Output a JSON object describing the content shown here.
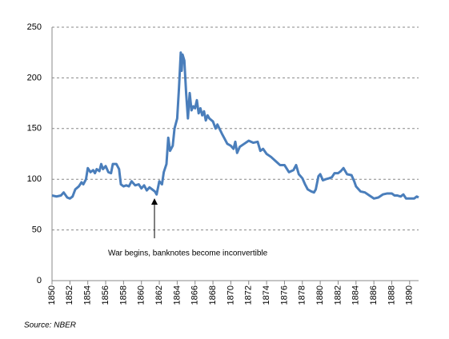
{
  "chart_data": {
    "type": "line",
    "annotation": "War begins, banknotes become inconvertible",
    "source": "Source: NBER",
    "xlim": [
      1850,
      1891
    ],
    "xticks": [
      1850,
      1852,
      1854,
      1856,
      1858,
      1860,
      1862,
      1864,
      1866,
      1868,
      1870,
      1872,
      1874,
      1876,
      1878,
      1880,
      1882,
      1884,
      1886,
      1888,
      1890
    ],
    "ylim": [
      0,
      250
    ],
    "yticks": [
      0,
      50,
      100,
      150,
      200,
      250
    ],
    "grid": true,
    "series": [
      {
        "color": "#4a7ebb",
        "x": [
          1850,
          1850.5,
          1851,
          1851.3,
          1851.7,
          1852,
          1852.3,
          1852.6,
          1853,
          1853.3,
          1853.5,
          1853.8,
          1854,
          1854.3,
          1854.6,
          1854.8,
          1855,
          1855.3,
          1855.5,
          1855.7,
          1856,
          1856.3,
          1856.6,
          1856.8,
          1857.2,
          1857.5,
          1857.7,
          1858,
          1858.3,
          1858.6,
          1858.9,
          1859.3,
          1859.7,
          1860,
          1860.3,
          1860.6,
          1860.9,
          1861.2,
          1861.5,
          1861.7,
          1862,
          1862.3,
          1862.5,
          1862.8,
          1863,
          1863.2,
          1863.5,
          1863.7,
          1864,
          1864.2,
          1864.4,
          1864.5,
          1864.6,
          1864.8,
          1865,
          1865.2,
          1865.4,
          1865.6,
          1865.8,
          1866,
          1866.2,
          1866.4,
          1866.6,
          1866.8,
          1867,
          1867.2,
          1867.4,
          1867.6,
          1868,
          1868.3,
          1868.5,
          1869,
          1869.3,
          1869.6,
          1870,
          1870.3,
          1870.5,
          1870.7,
          1871,
          1871.5,
          1872,
          1872.5,
          1873,
          1873.3,
          1873.6,
          1874,
          1874.5,
          1875,
          1875.5,
          1876,
          1876.5,
          1877,
          1877.3,
          1877.6,
          1878,
          1878.3,
          1878.6,
          1879,
          1879.3,
          1879.5,
          1879.8,
          1880,
          1880.3,
          1880.6,
          1881,
          1881.3,
          1881.6,
          1882,
          1882.3,
          1882.6,
          1883,
          1883.5,
          1883.8,
          1884,
          1884.5,
          1885,
          1885.5,
          1886,
          1886.5,
          1887,
          1887.5,
          1888,
          1888.3,
          1888.6,
          1889,
          1889.3,
          1889.6,
          1890,
          1890.5,
          1890.8,
          1891
        ],
        "values": [
          84,
          83,
          84,
          87,
          82,
          81,
          83,
          90,
          93,
          97,
          95,
          100,
          111,
          107,
          109,
          106,
          110,
          108,
          115,
          110,
          113,
          107,
          106,
          115,
          115,
          110,
          95,
          93,
          94,
          93,
          98,
          94,
          95,
          91,
          94,
          89,
          92,
          90,
          88,
          85,
          98,
          95,
          107,
          115,
          141,
          128,
          133,
          150,
          160,
          190,
          225,
          207,
          223,
          217,
          185,
          160,
          185,
          168,
          172,
          170,
          178,
          165,
          170,
          163,
          167,
          158,
          163,
          160,
          157,
          150,
          154,
          145,
          140,
          135,
          133,
          130,
          137,
          126,
          132,
          135,
          138,
          136,
          137,
          128,
          130,
          125,
          122,
          118,
          114,
          114,
          107,
          109,
          114,
          105,
          101,
          95,
          90,
          88,
          87,
          90,
          103,
          105,
          99,
          100,
          101,
          102,
          106,
          106,
          108,
          111,
          105,
          104,
          98,
          93,
          88,
          87,
          84,
          81,
          82,
          85,
          86,
          86,
          84,
          84,
          83,
          85,
          81,
          81,
          81,
          83,
          82
        ]
      }
    ]
  }
}
